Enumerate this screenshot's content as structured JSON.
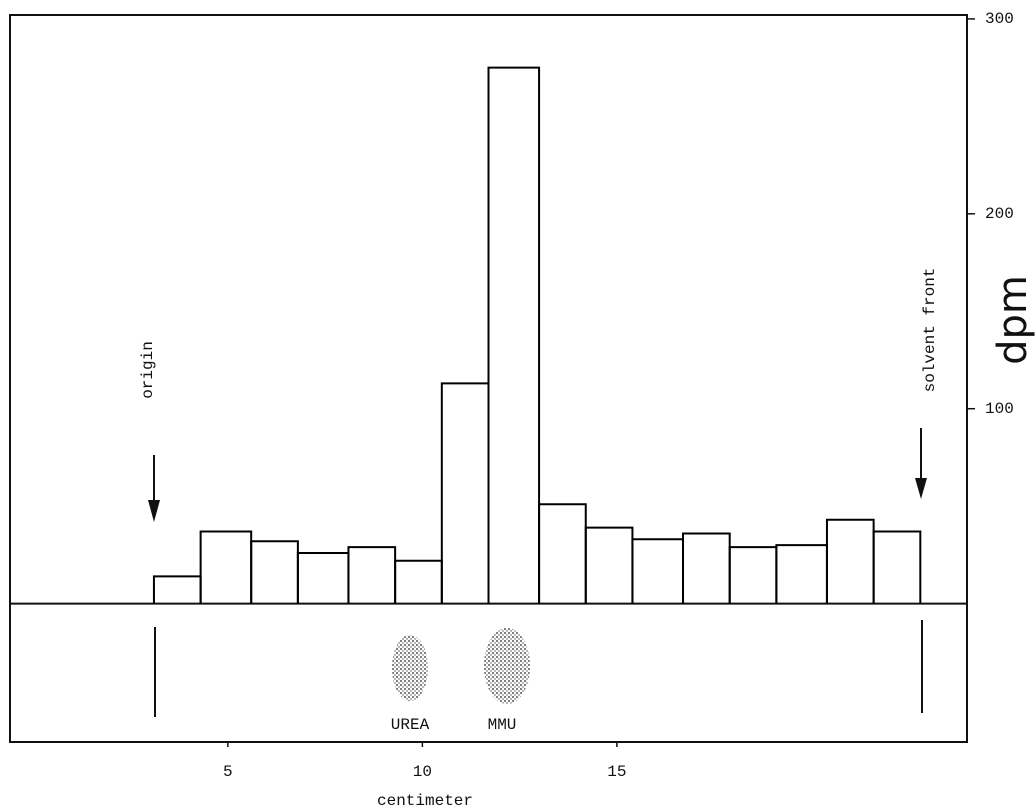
{
  "chart_data": {
    "type": "histogram",
    "x_label": "centimeter",
    "y_label": "dpm",
    "bins": [
      3.1,
      4.3,
      5.6,
      6.8,
      8.1,
      9.3,
      10.5,
      11.7,
      13.0,
      14.2,
      15.4,
      16.7,
      17.9,
      19.1,
      20.4,
      21.6,
      22.8
    ],
    "counts": [
      14,
      37,
      32,
      26,
      29,
      22,
      113,
      275,
      51,
      39,
      33,
      36,
      29,
      30,
      43,
      37
    ],
    "color": "#000000",
    "xlim": [
      -0.6,
      24
    ],
    "ylim": [
      -71,
      302
    ],
    "xticks": [
      5,
      10,
      15
    ],
    "yticks": [
      100,
      200,
      300
    ],
    "annotations": [
      "origin",
      "solvent front"
    ],
    "spots": [
      "UREA",
      "MMU"
    ]
  }
}
